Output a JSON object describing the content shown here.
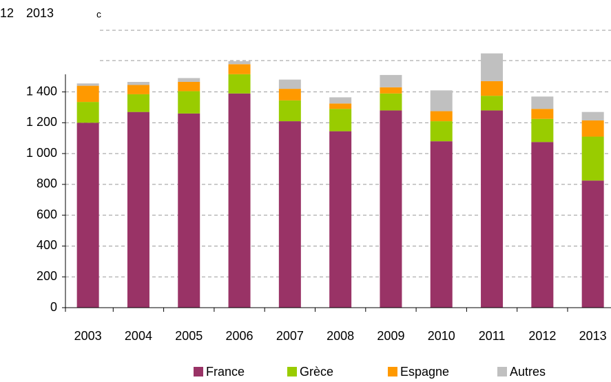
{
  "chart_data": {
    "type": "bar",
    "stacked": true,
    "annotations": [
      "12",
      "2013",
      "c"
    ],
    "categories": [
      "2003",
      "2004",
      "2005",
      "2006",
      "2007",
      "2008",
      "2009",
      "2010",
      "2011",
      "2012",
      "2013"
    ],
    "series": [
      {
        "name": "France",
        "color": "#993366",
        "values": [
          1200,
          1270,
          1260,
          1390,
          1210,
          1145,
          1280,
          1080,
          1280,
          1075,
          825
        ]
      },
      {
        "name": "Grèce",
        "color": "#99cc00",
        "values": [
          135,
          115,
          145,
          125,
          135,
          145,
          110,
          130,
          95,
          150,
          285
        ]
      },
      {
        "name": "Espagne",
        "color": "#ff9900",
        "values": [
          105,
          60,
          60,
          65,
          75,
          35,
          40,
          65,
          95,
          65,
          105
        ]
      },
      {
        "name": "Autres",
        "color": "#c0c0c0",
        "values": [
          15,
          20,
          25,
          20,
          60,
          40,
          80,
          135,
          180,
          80,
          55
        ]
      }
    ],
    "ylim": [
      0,
      1800
    ],
    "yticks": [
      0,
      200,
      400,
      600,
      800,
      {
        "value": 1000,
        "label": "1 000"
      },
      {
        "value": 1200,
        "label": "1 200"
      },
      {
        "value": 1400,
        "label": "1 400"
      }
    ],
    "grid": true,
    "legend": "bottom"
  }
}
